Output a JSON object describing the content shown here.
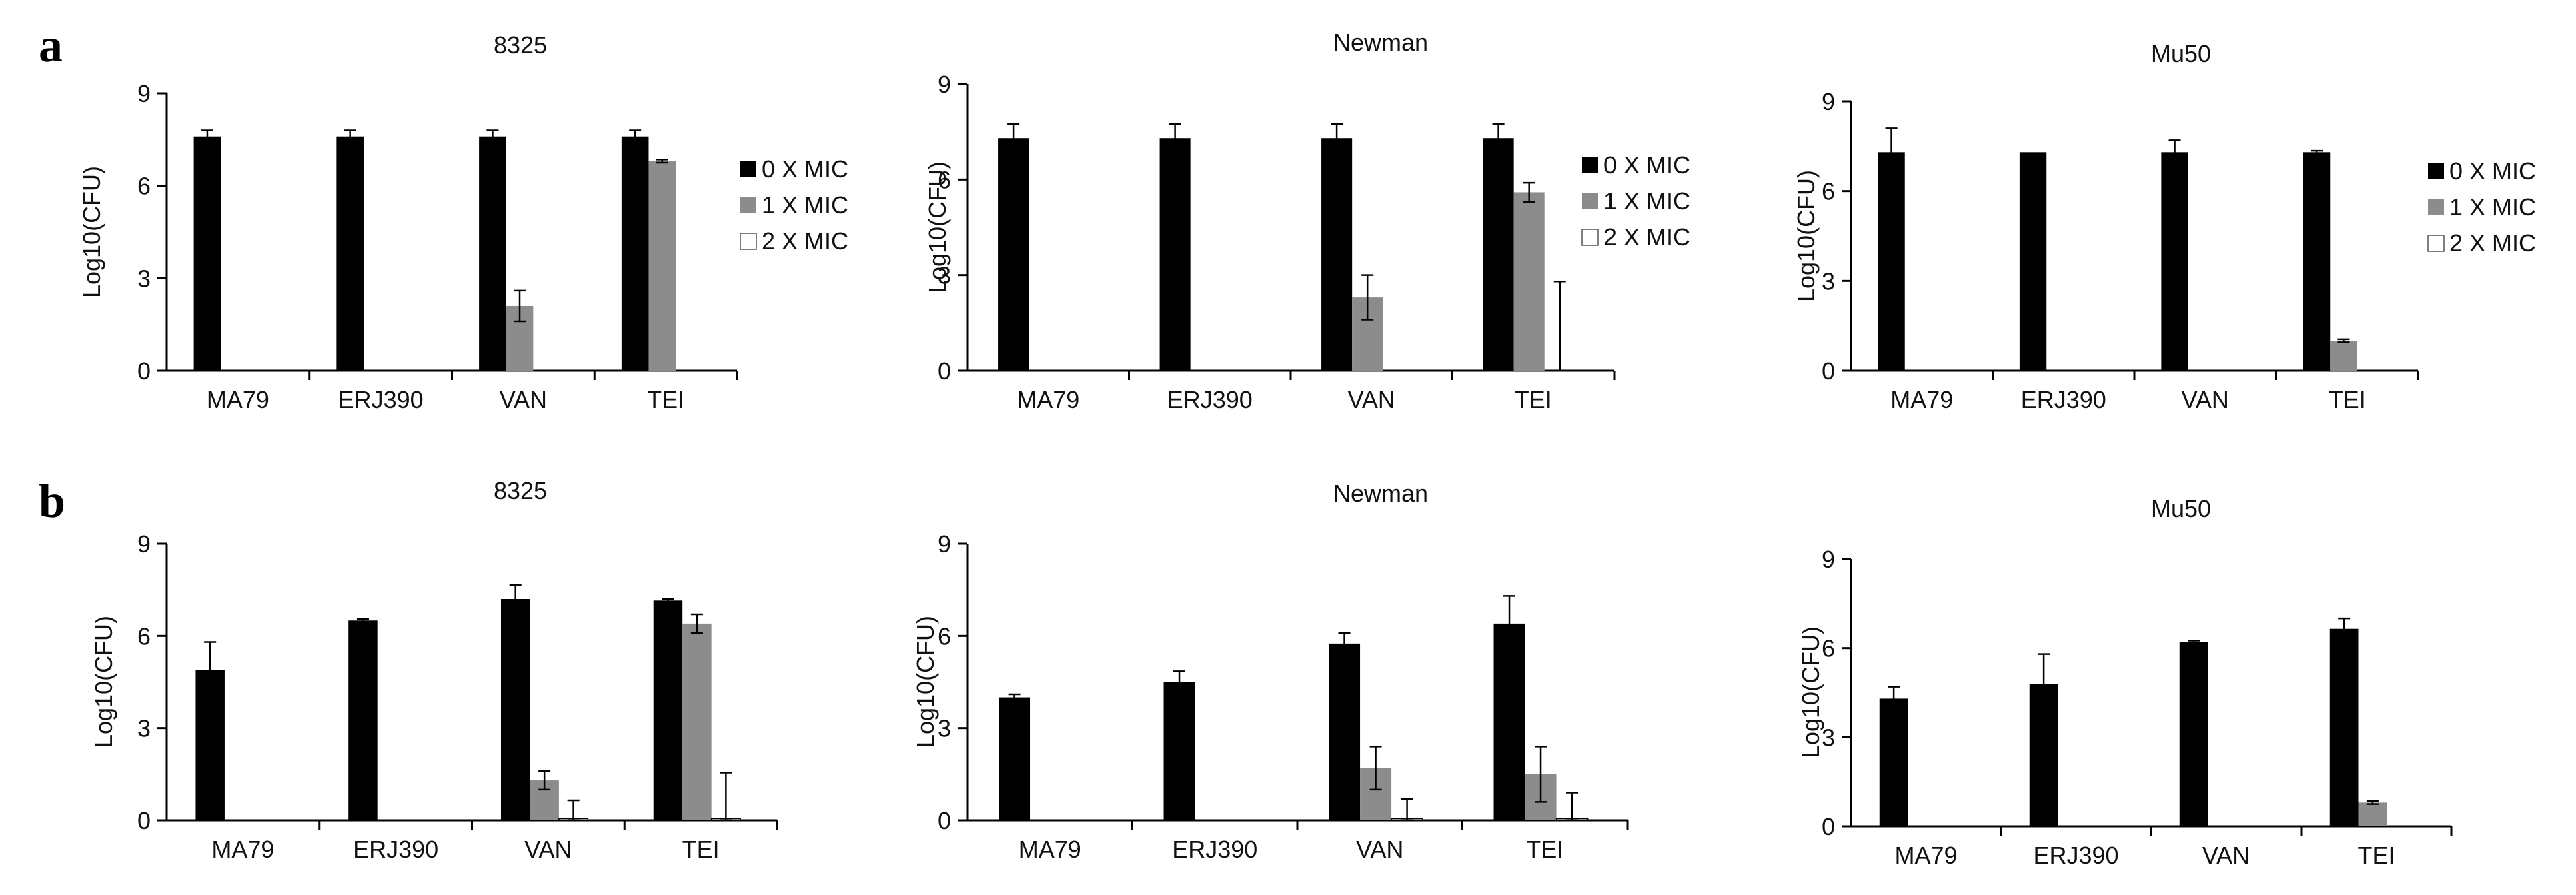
{
  "panel_labels": [
    "a",
    "b"
  ],
  "legend_labels": [
    "0 X MIC",
    "1 X MIC",
    "2 X MIC"
  ],
  "colors": {
    "series0": "#000000",
    "series1": "#8c8c8c",
    "series2": "#ffffff",
    "axis": "#000000",
    "errorbar": "#000000"
  },
  "chart_data": [
    {
      "type": "bar",
      "title": "8325",
      "ylabel": "Log10(CFU)",
      "xlabel": "",
      "ylim": [
        0,
        9
      ],
      "yticks": [
        0,
        3,
        6,
        9
      ],
      "categories": [
        "MA79",
        "ERJ390",
        "VAN",
        "TEI"
      ],
      "legend": true,
      "series": [
        {
          "name": "0 X MIC",
          "values": [
            7.6,
            7.6,
            7.6,
            7.6
          ],
          "errors": [
            0.2,
            0.2,
            0.2,
            0.2
          ]
        },
        {
          "name": "1 X MIC",
          "values": [
            0,
            0,
            2.1,
            6.8
          ],
          "errors": [
            0,
            0,
            0.5,
            0.05
          ]
        },
        {
          "name": "2 X MIC",
          "values": [
            0,
            0,
            0,
            0
          ],
          "errors": [
            0,
            0,
            0,
            0
          ]
        }
      ]
    },
    {
      "type": "bar",
      "title": "Newman",
      "ylabel": "Log10(CFU)",
      "xlabel": "",
      "ylim": [
        0,
        9
      ],
      "yticks": [
        0,
        3,
        6,
        9
      ],
      "categories": [
        "MA79",
        "ERJ390",
        "VAN",
        "TEI"
      ],
      "legend": true,
      "series": [
        {
          "name": "0 X MIC",
          "values": [
            7.3,
            7.3,
            7.3,
            7.3
          ],
          "errors": [
            0.45,
            0.45,
            0.45,
            0.45
          ]
        },
        {
          "name": "1 X MIC",
          "values": [
            0,
            0,
            2.3,
            5.6
          ],
          "errors": [
            0,
            0,
            0.7,
            0.3
          ]
        },
        {
          "name": "2 X MIC",
          "values": [
            0,
            0,
            0,
            0
          ],
          "errors": [
            0,
            0,
            0,
            2.8
          ]
        }
      ]
    },
    {
      "type": "bar",
      "title": "Mu50",
      "ylabel": "Log10(CFU)",
      "xlabel": "",
      "ylim": [
        0,
        9
      ],
      "yticks": [
        0,
        3,
        6,
        9
      ],
      "categories": [
        "MA79",
        "ERJ390",
        "VAN",
        "TEI"
      ],
      "legend": true,
      "series": [
        {
          "name": "0 X MIC",
          "values": [
            7.3,
            7.3,
            7.3,
            7.3
          ],
          "errors": [
            0.8,
            0,
            0.4,
            0.05
          ]
        },
        {
          "name": "1 X MIC",
          "values": [
            0,
            0,
            0,
            1.0
          ],
          "errors": [
            0,
            0,
            0,
            0.05
          ]
        },
        {
          "name": "2 X MIC",
          "values": [
            0,
            0,
            0,
            0
          ],
          "errors": [
            0,
            0,
            0,
            0
          ]
        }
      ]
    },
    {
      "type": "bar",
      "title": "8325",
      "ylabel": "Log10(CFU)",
      "xlabel": "",
      "ylim": [
        0,
        9
      ],
      "yticks": [
        0,
        3,
        6,
        9
      ],
      "categories": [
        "MA79",
        "ERJ390",
        "VAN",
        "TEI"
      ],
      "legend": false,
      "series": [
        {
          "name": "0 X MIC",
          "values": [
            4.9,
            6.5,
            7.2,
            7.15
          ],
          "errors": [
            0.9,
            0.05,
            0.45,
            0.05
          ]
        },
        {
          "name": "1 X MIC",
          "values": [
            0,
            0,
            1.3,
            6.4
          ],
          "errors": [
            0,
            0,
            0.3,
            0.3
          ]
        },
        {
          "name": "2 X MIC",
          "values": [
            0,
            0,
            0.05,
            0.05
          ],
          "errors": [
            0,
            0,
            0.6,
            1.5
          ]
        }
      ]
    },
    {
      "type": "bar",
      "title": "Newman",
      "ylabel": "Log10(CFU)",
      "xlabel": "",
      "ylim": [
        0,
        9
      ],
      "yticks": [
        0,
        3,
        6,
        9
      ],
      "categories": [
        "MA79",
        "ERJ390",
        "VAN",
        "TEI"
      ],
      "legend": false,
      "series": [
        {
          "name": "0 X MIC",
          "values": [
            4.0,
            4.5,
            5.75,
            6.4
          ],
          "errors": [
            0.1,
            0.35,
            0.35,
            0.9
          ]
        },
        {
          "name": "1 X MIC",
          "values": [
            0,
            0,
            1.7,
            1.5
          ],
          "errors": [
            0,
            0,
            0.7,
            0.9
          ]
        },
        {
          "name": "2 X MIC",
          "values": [
            0,
            0,
            0.05,
            0.05
          ],
          "errors": [
            0,
            0,
            0.65,
            0.85
          ]
        }
      ]
    },
    {
      "type": "bar",
      "title": "Mu50",
      "ylabel": "Log10(CFU)",
      "xlabel": "",
      "ylim": [
        0,
        9
      ],
      "yticks": [
        0,
        3,
        6,
        9
      ],
      "categories": [
        "MA79",
        "ERJ390",
        "VAN",
        "TEI"
      ],
      "legend": false,
      "series": [
        {
          "name": "0 X MIC",
          "values": [
            4.3,
            4.8,
            6.2,
            6.65
          ],
          "errors": [
            0.4,
            1.0,
            0.05,
            0.35
          ]
        },
        {
          "name": "1 X MIC",
          "values": [
            0,
            0,
            0,
            0.8
          ],
          "errors": [
            0,
            0,
            0,
            0.05
          ]
        },
        {
          "name": "2 X MIC",
          "values": [
            0,
            0,
            0,
            0
          ],
          "errors": [
            0,
            0,
            0,
            0
          ]
        }
      ]
    }
  ]
}
